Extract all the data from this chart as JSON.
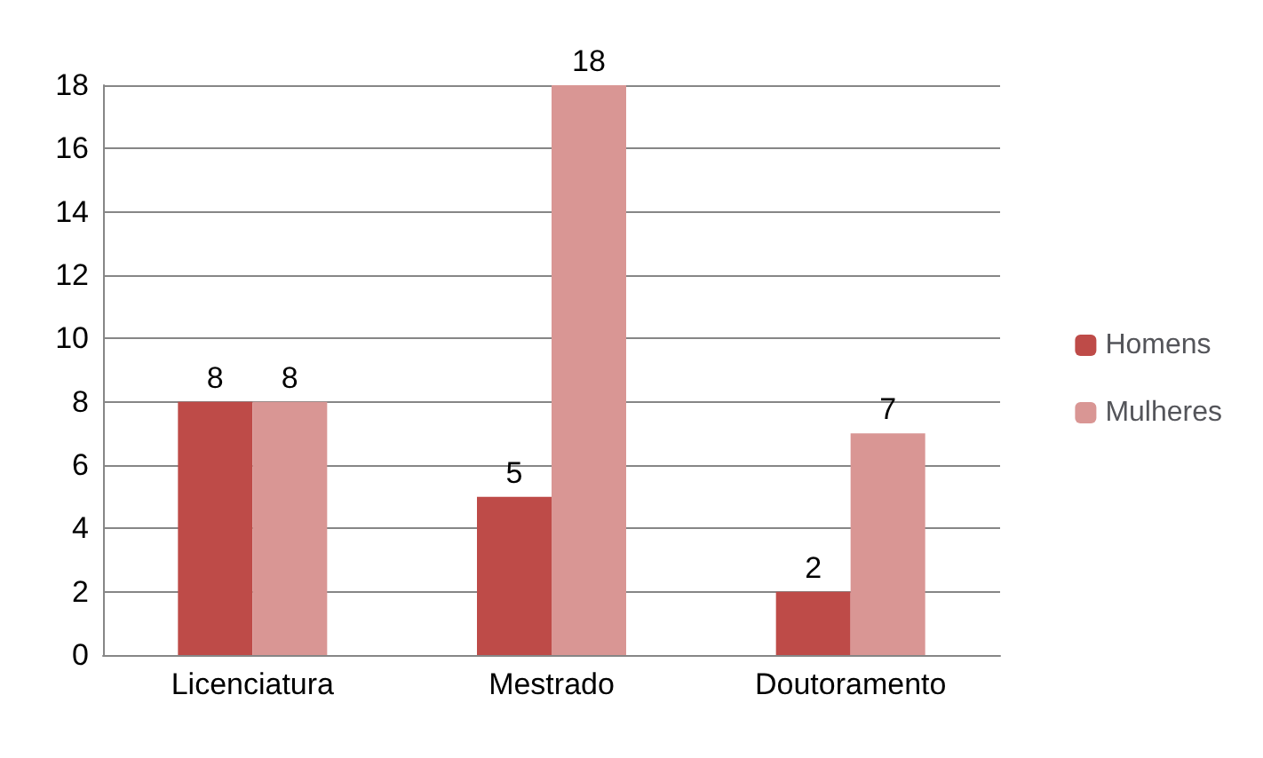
{
  "chart_data": {
    "type": "bar",
    "categories": [
      "Licenciatura",
      "Mestrado",
      "Doutoramento"
    ],
    "series": [
      {
        "name": "Homens",
        "color": "#be4b48",
        "values": [
          8,
          5,
          2
        ]
      },
      {
        "name": "Mulheres",
        "color": "#d99694",
        "values": [
          8,
          18,
          7
        ]
      }
    ],
    "ylim": [
      0,
      18
    ],
    "yticks": [
      0,
      2,
      4,
      6,
      8,
      10,
      12,
      14,
      16,
      18
    ],
    "grid": "y",
    "legend": "right",
    "data_labels": true
  }
}
